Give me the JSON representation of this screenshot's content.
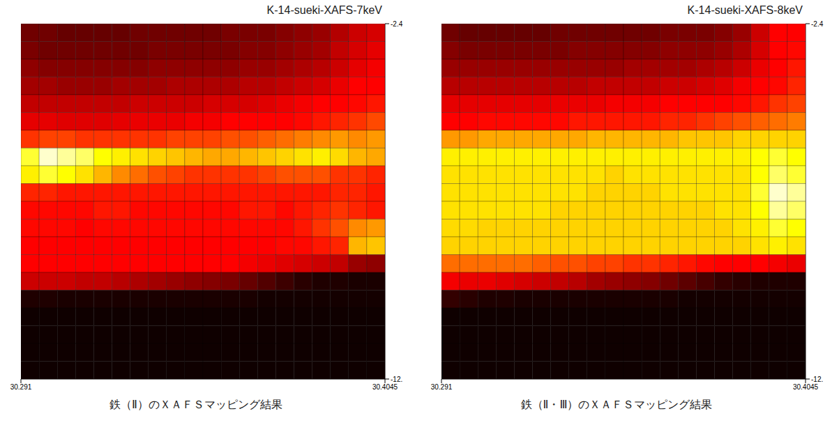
{
  "chart_data": [
    {
      "type": "heatmap",
      "title": "K-14-sueki-XAFS-7keV",
      "xlabel": "鉄（Ⅱ）のＸＡＦＳマッピング結果",
      "xlim": [
        30.291,
        30.4045
      ],
      "xticks": [
        30.291,
        30.4045
      ],
      "ylim": [
        -12,
        -2.4
      ],
      "yticks": [
        {
          "value": -12,
          "label": "-12."
        },
        -2.4
      ],
      "grid": true,
      "color_range": [
        0,
        100
      ],
      "cells": [
        [
          22,
          22,
          20,
          20,
          20,
          20,
          22,
          22,
          22,
          22,
          22,
          24,
          24,
          24,
          26,
          28,
          30,
          35,
          40,
          42
        ],
        [
          24,
          22,
          22,
          22,
          22,
          22,
          22,
          24,
          24,
          24,
          24,
          24,
          26,
          26,
          28,
          30,
          32,
          38,
          42,
          45
        ],
        [
          28,
          26,
          26,
          26,
          26,
          26,
          26,
          28,
          28,
          28,
          28,
          28,
          30,
          30,
          32,
          34,
          36,
          40,
          45,
          48
        ],
        [
          32,
          32,
          30,
          30,
          30,
          32,
          32,
          32,
          34,
          34,
          34,
          34,
          36,
          36,
          38,
          40,
          42,
          46,
          50,
          52
        ],
        [
          38,
          38,
          38,
          38,
          38,
          38,
          40,
          40,
          40,
          40,
          42,
          42,
          42,
          44,
          46,
          48,
          50,
          52,
          56,
          58
        ],
        [
          45,
          45,
          44,
          44,
          44,
          45,
          46,
          46,
          46,
          48,
          48,
          50,
          50,
          52,
          54,
          56,
          58,
          60,
          62,
          65
        ],
        [
          62,
          64,
          64,
          62,
          62,
          62,
          62,
          62,
          64,
          64,
          64,
          66,
          66,
          68,
          70,
          72,
          74,
          76,
          74,
          76
        ],
        [
          92,
          98,
          96,
          94,
          90,
          88,
          86,
          84,
          82,
          80,
          78,
          78,
          80,
          82,
          84,
          86,
          88,
          85,
          80,
          78
        ],
        [
          88,
          92,
          90,
          86,
          80,
          74,
          70,
          66,
          64,
          62,
          62,
          62,
          62,
          64,
          66,
          66,
          66,
          62,
          62,
          60
        ],
        [
          60,
          60,
          58,
          58,
          58,
          58,
          58,
          58,
          58,
          58,
          58,
          58,
          58,
          58,
          58,
          58,
          58,
          60,
          60,
          58
        ],
        [
          56,
          56,
          56,
          56,
          58,
          58,
          56,
          56,
          56,
          56,
          56,
          56,
          58,
          58,
          56,
          58,
          60,
          62,
          60,
          58
        ],
        [
          56,
          56,
          56,
          54,
          56,
          56,
          56,
          56,
          56,
          56,
          56,
          56,
          56,
          56,
          56,
          58,
          62,
          66,
          74,
          76
        ],
        [
          54,
          54,
          54,
          54,
          54,
          54,
          54,
          54,
          54,
          54,
          54,
          54,
          54,
          54,
          56,
          56,
          58,
          60,
          80,
          82
        ],
        [
          52,
          52,
          52,
          52,
          52,
          52,
          52,
          52,
          50,
          50,
          50,
          50,
          48,
          46,
          44,
          42,
          40,
          38,
          30,
          28
        ],
        [
          40,
          40,
          40,
          38,
          38,
          36,
          34,
          32,
          30,
          28,
          26,
          24,
          20,
          16,
          12,
          8,
          6,
          6,
          5,
          5
        ],
        [
          6,
          6,
          5,
          5,
          5,
          5,
          5,
          5,
          5,
          5,
          5,
          5,
          5,
          4,
          4,
          4,
          4,
          4,
          4,
          4
        ],
        [
          3,
          3,
          3,
          3,
          3,
          3,
          3,
          3,
          3,
          3,
          3,
          3,
          3,
          3,
          3,
          3,
          3,
          3,
          3,
          3
        ],
        [
          3,
          3,
          3,
          3,
          3,
          3,
          3,
          3,
          3,
          3,
          3,
          3,
          3,
          3,
          3,
          3,
          3,
          3,
          3,
          3
        ],
        [
          3,
          3,
          3,
          3,
          3,
          3,
          3,
          3,
          3,
          3,
          3,
          3,
          3,
          3,
          3,
          3,
          3,
          3,
          3,
          3
        ],
        [
          3,
          3,
          3,
          3,
          3,
          3,
          3,
          3,
          3,
          3,
          3,
          3,
          3,
          3,
          3,
          3,
          3,
          3,
          3,
          3
        ]
      ]
    },
    {
      "type": "heatmap",
      "title": "K-14-sueki-XAFS-8keV",
      "xlabel": "鉄（Ⅱ・Ⅲ）のＸＡＦＳマッピング結果",
      "xlim": [
        30.291,
        30.4045
      ],
      "xticks": [
        30.291,
        30.4045
      ],
      "ylim": [
        -12,
        -2.4
      ],
      "yticks": [
        {
          "value": -12,
          "label": "-12."
        },
        -2.4
      ],
      "grid": true,
      "color_range": [
        0,
        100
      ],
      "cells": [
        [
          22,
          20,
          20,
          20,
          20,
          20,
          22,
          22,
          22,
          22,
          22,
          22,
          24,
          24,
          24,
          26,
          30,
          40,
          50,
          55
        ],
        [
          26,
          24,
          24,
          24,
          24,
          24,
          24,
          26,
          26,
          26,
          26,
          26,
          28,
          28,
          28,
          30,
          34,
          42,
          50,
          56
        ],
        [
          30,
          30,
          30,
          30,
          30,
          30,
          30,
          30,
          30,
          30,
          32,
          32,
          32,
          32,
          34,
          36,
          40,
          46,
          52,
          58
        ],
        [
          36,
          36,
          36,
          36,
          36,
          36,
          36,
          36,
          38,
          38,
          38,
          38,
          40,
          40,
          42,
          44,
          48,
          52,
          56,
          60
        ],
        [
          45,
          45,
          45,
          45,
          45,
          45,
          46,
          46,
          46,
          48,
          48,
          48,
          50,
          50,
          52,
          54,
          56,
          58,
          62,
          64
        ],
        [
          55,
          55,
          56,
          56,
          56,
          56,
          56,
          58,
          58,
          58,
          58,
          58,
          60,
          60,
          62,
          64,
          66,
          68,
          70,
          72
        ],
        [
          76,
          76,
          78,
          78,
          78,
          78,
          78,
          78,
          80,
          80,
          80,
          80,
          80,
          82,
          82,
          82,
          84,
          84,
          84,
          84
        ],
        [
          88,
          88,
          88,
          88,
          88,
          88,
          88,
          88,
          88,
          88,
          88,
          88,
          88,
          88,
          88,
          88,
          88,
          90,
          92,
          90
        ],
        [
          86,
          86,
          86,
          86,
          86,
          86,
          86,
          86,
          86,
          84,
          86,
          86,
          86,
          86,
          86,
          86,
          86,
          90,
          94,
          92
        ],
        [
          86,
          86,
          86,
          86,
          86,
          86,
          86,
          86,
          84,
          84,
          84,
          84,
          86,
          86,
          86,
          86,
          86,
          92,
          98,
          96
        ],
        [
          86,
          86,
          86,
          86,
          86,
          86,
          84,
          84,
          84,
          84,
          84,
          84,
          84,
          84,
          84,
          86,
          86,
          90,
          96,
          94
        ],
        [
          85,
          85,
          84,
          84,
          84,
          84,
          84,
          84,
          84,
          84,
          84,
          84,
          84,
          84,
          84,
          84,
          86,
          88,
          92,
          90
        ],
        [
          84,
          84,
          84,
          84,
          84,
          84,
          84,
          84,
          84,
          84,
          84,
          84,
          84,
          84,
          84,
          84,
          84,
          86,
          88,
          86
        ],
        [
          70,
          70,
          70,
          70,
          70,
          68,
          66,
          66,
          64,
          64,
          62,
          62,
          60,
          58,
          56,
          54,
          52,
          50,
          48,
          46
        ],
        [
          48,
          46,
          46,
          44,
          42,
          40,
          38,
          36,
          32,
          30,
          28,
          26,
          22,
          18,
          14,
          10,
          8,
          6,
          6,
          6
        ],
        [
          10,
          8,
          6,
          6,
          5,
          5,
          5,
          5,
          5,
          5,
          5,
          5,
          5,
          4,
          4,
          4,
          4,
          4,
          4,
          4
        ],
        [
          3,
          3,
          3,
          3,
          3,
          3,
          3,
          3,
          3,
          3,
          3,
          3,
          3,
          3,
          3,
          3,
          3,
          3,
          3,
          3
        ],
        [
          3,
          3,
          3,
          3,
          3,
          3,
          3,
          3,
          3,
          3,
          3,
          3,
          3,
          3,
          3,
          3,
          3,
          3,
          3,
          3
        ],
        [
          3,
          3,
          3,
          3,
          3,
          3,
          3,
          3,
          3,
          3,
          3,
          3,
          3,
          3,
          3,
          3,
          3,
          3,
          3,
          3
        ],
        [
          3,
          3,
          3,
          3,
          3,
          3,
          3,
          3,
          3,
          3,
          3,
          3,
          3,
          3,
          3,
          3,
          3,
          3,
          3,
          3
        ]
      ]
    }
  ]
}
